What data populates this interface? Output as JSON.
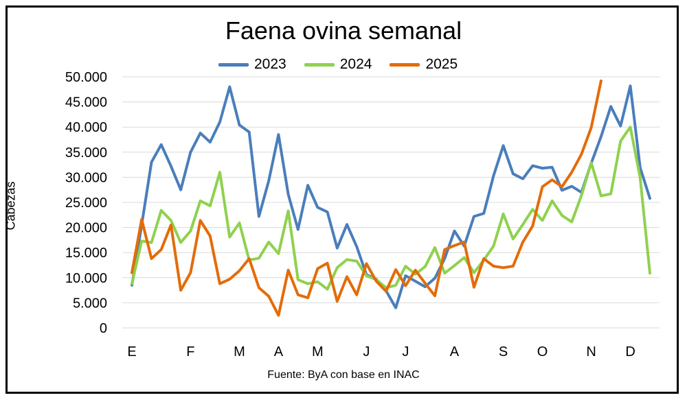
{
  "chart_data": {
    "type": "line",
    "title": "Faena ovina semanal",
    "ylabel": "Cabezas",
    "xlabel": "",
    "source": "Fuente: ByA con base en INAC",
    "ylim": [
      0,
      50000
    ],
    "y_ticks": [
      "0",
      "5.000",
      "10.000",
      "15.000",
      "20.000",
      "25.000",
      "30.000",
      "35.000",
      "40.000",
      "45.000",
      "50.000"
    ],
    "x_ticks": [
      {
        "label": "E",
        "week": 1
      },
      {
        "label": "F",
        "week": 7
      },
      {
        "label": "M",
        "week": 12
      },
      {
        "label": "A",
        "week": 16
      },
      {
        "label": "M",
        "week": 20
      },
      {
        "label": "J",
        "week": 25
      },
      {
        "label": "J",
        "week": 29
      },
      {
        "label": "A",
        "week": 34
      },
      {
        "label": "S",
        "week": 39
      },
      {
        "label": "O",
        "week": 43
      },
      {
        "label": "N",
        "week": 48
      },
      {
        "label": "D",
        "week": 52
      }
    ],
    "grid": true,
    "legend_position": "top",
    "series": [
      {
        "name": "2023",
        "color": "#4a7ebb",
        "values": [
          8500,
          20500,
          33000,
          36500,
          32200,
          27500,
          35000,
          38800,
          37000,
          41000,
          48000,
          40400,
          39000,
          22200,
          29300,
          38500,
          26600,
          19600,
          28400,
          24000,
          23100,
          15900,
          20600,
          16200,
          10600,
          9700,
          7400,
          4000,
          10400,
          9300,
          8200,
          9900,
          13800,
          19300,
          16300,
          22200,
          22800,
          30300,
          36300,
          30700,
          29700,
          32300,
          31800,
          32000,
          27400,
          28200,
          27000,
          32800,
          38100,
          44100,
          40200,
          48200,
          31900,
          25800
        ]
      },
      {
        "name": "2024",
        "color": "#8fd14f",
        "values": [
          8800,
          17300,
          17000,
          23400,
          21400,
          17000,
          19300,
          25300,
          24300,
          31000,
          18100,
          20900,
          13500,
          13900,
          17100,
          14800,
          23300,
          9600,
          8800,
          9200,
          7700,
          12000,
          13600,
          13300,
          10400,
          9600,
          8000,
          8500,
          12300,
          10700,
          12200,
          16000,
          10900,
          12400,
          14000,
          11000,
          13500,
          16300,
          22700,
          17700,
          20600,
          23600,
          21400,
          25300,
          22400,
          21100,
          26400,
          32900,
          26300,
          26700,
          37200,
          40000,
          29900,
          10900
        ]
      },
      {
        "name": "2025",
        "color": "#e36c09",
        "values": [
          11000,
          21600,
          13800,
          15600,
          20500,
          7500,
          11000,
          21400,
          18300,
          8800,
          9700,
          11400,
          13800,
          8000,
          6300,
          2500,
          11500,
          6600,
          6000,
          11800,
          12900,
          5300,
          10200,
          6600,
          12800,
          9300,
          7300,
          11600,
          8400,
          11500,
          8900,
          6400,
          15600,
          16400,
          17100,
          8100,
          13800,
          12300,
          12000,
          12300,
          17100,
          20300,
          28100,
          29500,
          28100,
          31000,
          34600,
          39900,
          49200
        ]
      }
    ]
  }
}
